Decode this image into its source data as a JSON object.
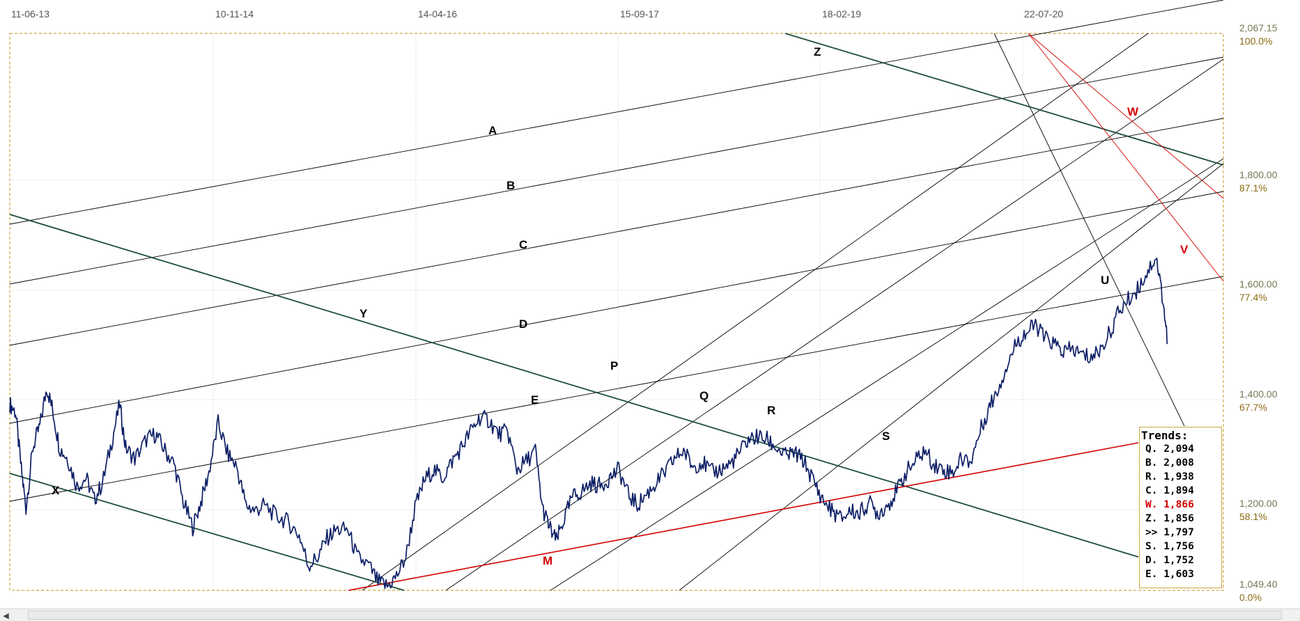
{
  "chart_data": {
    "type": "line",
    "title": "",
    "date_labels": [
      "11-06-13",
      "10-11-14",
      "14-04-16",
      "15-09-17",
      "18-02-19",
      "22-07-20"
    ],
    "price_labels": [
      {
        "price": 2067.15,
        "label": "2,067.15",
        "pct": "100.0%"
      },
      {
        "price": 1800,
        "label": "1,800.00",
        "pct": "87.1%"
      },
      {
        "price": 1600,
        "label": "1,600.00",
        "pct": "77.4%"
      },
      {
        "price": 1400,
        "label": "1,400.00",
        "pct": "67.7%"
      },
      {
        "price": 1200,
        "label": "1,200.00",
        "pct": "58.1%"
      },
      {
        "price": 1049.4,
        "label": "1,049.40",
        "pct": "0.0%"
      }
    ],
    "ylim": [
      1049.4,
      2067.15
    ],
    "series": [
      {
        "color": "#0d1f66",
        "points": [
          [
            0,
            1390
          ],
          [
            0.005,
            1375
          ],
          [
            0.01,
            1270
          ],
          [
            0.014,
            1200
          ],
          [
            0.02,
            1310
          ],
          [
            0.026,
            1350
          ],
          [
            0.032,
            1420
          ],
          [
            0.037,
            1380
          ],
          [
            0.043,
            1310
          ],
          [
            0.05,
            1290
          ],
          [
            0.058,
            1240
          ],
          [
            0.066,
            1255
          ],
          [
            0.073,
            1215
          ],
          [
            0.08,
            1245
          ],
          [
            0.088,
            1320
          ],
          [
            0.095,
            1390
          ],
          [
            0.1,
            1310
          ],
          [
            0.108,
            1290
          ],
          [
            0.118,
            1325
          ],
          [
            0.126,
            1335
          ],
          [
            0.134,
            1305
          ],
          [
            0.142,
            1280
          ],
          [
            0.15,
            1210
          ],
          [
            0.158,
            1165
          ],
          [
            0.165,
            1210
          ],
          [
            0.172,
            1265
          ],
          [
            0.18,
            1355
          ],
          [
            0.188,
            1300
          ],
          [
            0.196,
            1275
          ],
          [
            0.204,
            1205
          ],
          [
            0.212,
            1195
          ],
          [
            0.22,
            1205
          ],
          [
            0.23,
            1185
          ],
          [
            0.24,
            1175
          ],
          [
            0.25,
            1150
          ],
          [
            0.258,
            1095
          ],
          [
            0.266,
            1110
          ],
          [
            0.274,
            1145
          ],
          [
            0.282,
            1160
          ],
          [
            0.292,
            1160
          ],
          [
            0.3,
            1110
          ],
          [
            0.31,
            1095
          ],
          [
            0.318,
            1065
          ],
          [
            0.326,
            1057
          ],
          [
            0.334,
            1075
          ],
          [
            0.342,
            1110
          ],
          [
            0.35,
            1200
          ],
          [
            0.358,
            1250
          ],
          [
            0.366,
            1270
          ],
          [
            0.374,
            1255
          ],
          [
            0.382,
            1285
          ],
          [
            0.39,
            1310
          ],
          [
            0.398,
            1340
          ],
          [
            0.406,
            1365
          ],
          [
            0.414,
            1360
          ],
          [
            0.422,
            1335
          ],
          [
            0.43,
            1340
          ],
          [
            0.438,
            1270
          ],
          [
            0.446,
            1285
          ],
          [
            0.454,
            1305
          ],
          [
            0.46,
            1200
          ],
          [
            0.466,
            1165
          ],
          [
            0.472,
            1140
          ],
          [
            0.478,
            1175
          ],
          [
            0.486,
            1220
          ],
          [
            0.494,
            1230
          ],
          [
            0.502,
            1245
          ],
          [
            0.51,
            1240
          ],
          [
            0.518,
            1255
          ],
          [
            0.526,
            1270
          ],
          [
            0.534,
            1225
          ],
          [
            0.542,
            1205
          ],
          [
            0.55,
            1225
          ],
          [
            0.558,
            1245
          ],
          [
            0.566,
            1265
          ],
          [
            0.574,
            1290
          ],
          [
            0.582,
            1305
          ],
          [
            0.59,
            1275
          ],
          [
            0.598,
            1285
          ],
          [
            0.606,
            1265
          ],
          [
            0.614,
            1270
          ],
          [
            0.622,
            1280
          ],
          [
            0.63,
            1300
          ],
          [
            0.638,
            1325
          ],
          [
            0.646,
            1330
          ],
          [
            0.654,
            1325
          ],
          [
            0.662,
            1310
          ],
          [
            0.67,
            1295
          ],
          [
            0.678,
            1300
          ],
          [
            0.686,
            1285
          ],
          [
            0.694,
            1250
          ],
          [
            0.702,
            1215
          ],
          [
            0.71,
            1195
          ],
          [
            0.718,
            1180
          ],
          [
            0.726,
            1195
          ],
          [
            0.734,
            1190
          ],
          [
            0.742,
            1210
          ],
          [
            0.75,
            1190
          ],
          [
            0.758,
            1205
          ],
          [
            0.766,
            1230
          ],
          [
            0.774,
            1265
          ],
          [
            0.782,
            1285
          ],
          [
            0.79,
            1305
          ],
          [
            0.798,
            1280
          ],
          [
            0.806,
            1270
          ],
          [
            0.814,
            1265
          ],
          [
            0.822,
            1290
          ],
          [
            0.83,
            1285
          ],
          [
            0.838,
            1340
          ],
          [
            0.846,
            1385
          ],
          [
            0.854,
            1420
          ],
          [
            0.862,
            1465
          ],
          [
            0.87,
            1505
          ],
          [
            0.878,
            1520
          ],
          [
            0.886,
            1535
          ],
          [
            0.894,
            1510
          ],
          [
            0.902,
            1500
          ],
          [
            0.91,
            1485
          ],
          [
            0.918,
            1490
          ],
          [
            0.926,
            1480
          ],
          [
            0.934,
            1475
          ],
          [
            0.942,
            1490
          ],
          [
            0.95,
            1520
          ],
          [
            0.958,
            1560
          ],
          [
            0.966,
            1580
          ],
          [
            0.974,
            1600
          ],
          [
            0.982,
            1630
          ],
          [
            0.99,
            1660
          ],
          [
            0.996,
            1580
          ],
          [
            1.0,
            1500
          ]
        ]
      }
    ],
    "annotations": [
      "A",
      "B",
      "C",
      "D",
      "E",
      "P",
      "Q",
      "R",
      "S",
      "U",
      "V",
      "W",
      "X",
      "Y",
      "Z",
      "M"
    ],
    "grid": true,
    "legend": "bottom-right"
  },
  "trends": {
    "title": "Trends:",
    "rows": [
      {
        "name": "Q.",
        "value": "2,094",
        "color": "#000000"
      },
      {
        "name": "B.",
        "value": "2,008",
        "color": "#000000"
      },
      {
        "name": "R.",
        "value": "1,938",
        "color": "#000000"
      },
      {
        "name": "C.",
        "value": "1,894",
        "color": "#000000"
      },
      {
        "name": "W.",
        "value": "1,866",
        "color": "#d40000"
      },
      {
        "name": "Z.",
        "value": "1,856",
        "color": "#000000"
      },
      {
        "name": ">>",
        "value": "1,797",
        "color": "#000000"
      },
      {
        "name": "S.",
        "value": "1,756",
        "color": "#000000"
      },
      {
        "name": "D.",
        "value": "1,752",
        "color": "#000000"
      },
      {
        "name": "E.",
        "value": "1,603",
        "color": "#000000"
      }
    ]
  },
  "scrollbar": {
    "left_arrow_icon": "chevron-left-icon"
  }
}
